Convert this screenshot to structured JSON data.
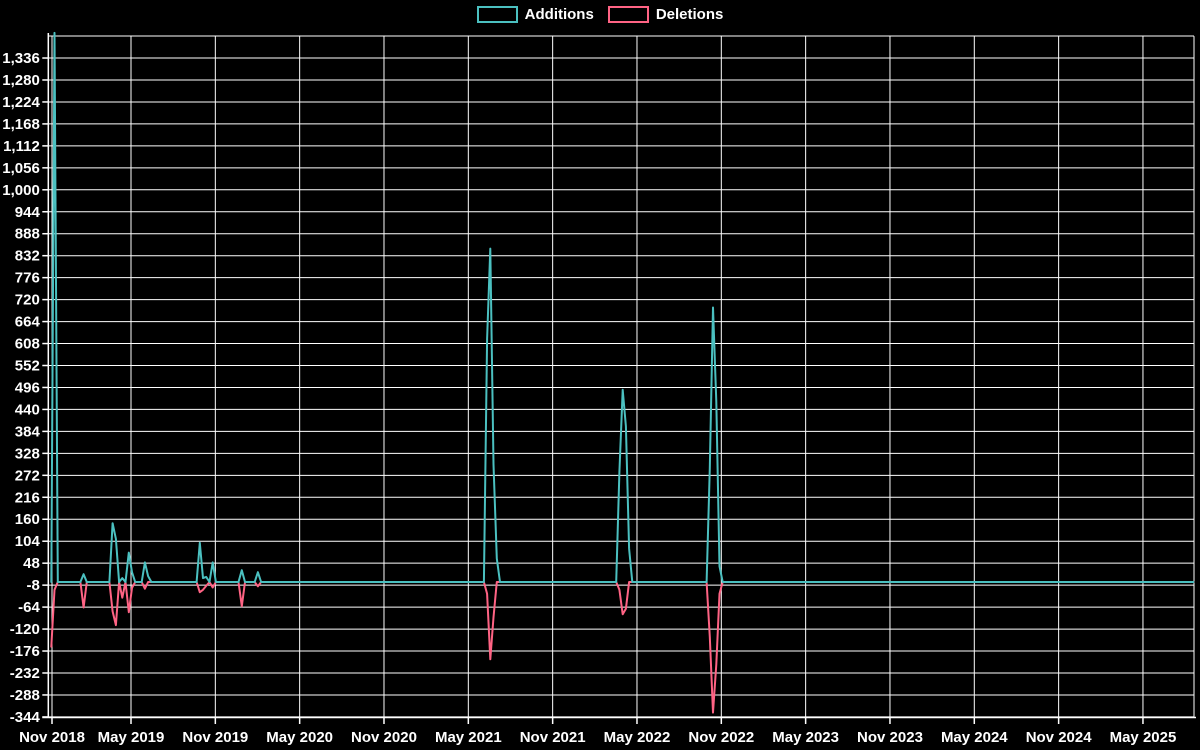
{
  "colors": {
    "background": "#000000",
    "grid": "#ffffff",
    "axis_text": "#ffffff",
    "additions": "#4bc0c0",
    "deletions": "#ff6384"
  },
  "legend": {
    "position": "top-center",
    "items": [
      {
        "label": "Additions",
        "color": "#4bc0c0"
      },
      {
        "label": "Deletions",
        "color": "#ff6384"
      }
    ]
  },
  "chart_data": {
    "type": "line",
    "title": "",
    "xlabel": "",
    "ylabel": "",
    "grid": true,
    "x_tick_labels": [
      "Nov 2018",
      "May 2019",
      "Nov 2019",
      "May 2020",
      "Nov 2020",
      "May 2021",
      "Nov 2021",
      "May 2022",
      "Nov 2022",
      "May 2023",
      "Nov 2023",
      "May 2024",
      "Nov 2024",
      "May 2025"
    ],
    "y_tick_labels": [
      "-344",
      "-288",
      "-232",
      "-176",
      "-120",
      "-64",
      "-8",
      "48",
      "104",
      "160",
      "216",
      "272",
      "328",
      "384",
      "440",
      "496",
      "552",
      "608",
      "664",
      "720",
      "776",
      "832",
      "888",
      "944",
      "1,000",
      "1,056",
      "1,112",
      "1,168",
      "1,224",
      "1,280",
      "1,336"
    ],
    "y_tick_min": -344,
    "y_tick_step": 56,
    "y_tick_count": 32,
    "ylim": [
      -344,
      1403
    ],
    "x_range": [
      "2018-10-28",
      "2025-08-17"
    ],
    "bin": "week",
    "weeks_total": 356,
    "week0_date": "2018-10-28",
    "series_names": [
      "Additions",
      "Deletions"
    ],
    "points": [
      {
        "week": 0,
        "date": "2018-10-28",
        "additions": 0,
        "deletions": -165
      },
      {
        "week": 1,
        "date": "2018-11-04",
        "additions": 1400,
        "deletions": -20
      },
      {
        "week": 10,
        "date": "2019-01-06",
        "additions": 20,
        "deletions": -65
      },
      {
        "week": 19,
        "date": "2019-03-10",
        "additions": 150,
        "deletions": -75
      },
      {
        "week": 20,
        "date": "2019-03-17",
        "additions": 110,
        "deletions": -110
      },
      {
        "week": 22,
        "date": "2019-03-31",
        "additions": 10,
        "deletions": -40
      },
      {
        "week": 24,
        "date": "2019-04-14",
        "additions": 75,
        "deletions": -77
      },
      {
        "week": 25,
        "date": "2019-04-21",
        "additions": 25,
        "deletions": -15
      },
      {
        "week": 29,
        "date": "2019-05-19",
        "additions": 50,
        "deletions": -17
      },
      {
        "week": 30,
        "date": "2019-05-26",
        "additions": 15,
        "deletions": 0
      },
      {
        "week": 46,
        "date": "2019-09-15",
        "additions": 100,
        "deletions": -26
      },
      {
        "week": 47,
        "date": "2019-09-22",
        "additions": 10,
        "deletions": -20
      },
      {
        "week": 48,
        "date": "2019-09-29",
        "additions": 13,
        "deletions": -10
      },
      {
        "week": 50,
        "date": "2019-10-13",
        "additions": 50,
        "deletions": -14
      },
      {
        "week": 59,
        "date": "2019-12-15",
        "additions": 30,
        "deletions": -62
      },
      {
        "week": 64,
        "date": "2020-01-19",
        "additions": 25,
        "deletions": -11
      },
      {
        "week": 135,
        "date": "2021-05-30",
        "additions": 620,
        "deletions": -30
      },
      {
        "week": 136,
        "date": "2021-06-06",
        "additions": 850,
        "deletions": -197
      },
      {
        "week": 137,
        "date": "2021-06-13",
        "additions": 300,
        "deletions": -90
      },
      {
        "week": 138,
        "date": "2021-06-20",
        "additions": 60,
        "deletions": 0
      },
      {
        "week": 176,
        "date": "2022-03-13",
        "additions": 280,
        "deletions": -20
      },
      {
        "week": 177,
        "date": "2022-03-20",
        "additions": 490,
        "deletions": -82
      },
      {
        "week": 178,
        "date": "2022-03-27",
        "additions": 397,
        "deletions": -68
      },
      {
        "week": 179,
        "date": "2022-04-03",
        "additions": 85,
        "deletions": 0
      },
      {
        "week": 204,
        "date": "2022-09-25",
        "additions": 290,
        "deletions": -140
      },
      {
        "week": 205,
        "date": "2022-10-02",
        "additions": 700,
        "deletions": -333
      },
      {
        "week": 206,
        "date": "2022-10-09",
        "additions": 460,
        "deletions": -210
      },
      {
        "week": 207,
        "date": "2022-10-16",
        "additions": 40,
        "deletions": -30
      }
    ]
  }
}
